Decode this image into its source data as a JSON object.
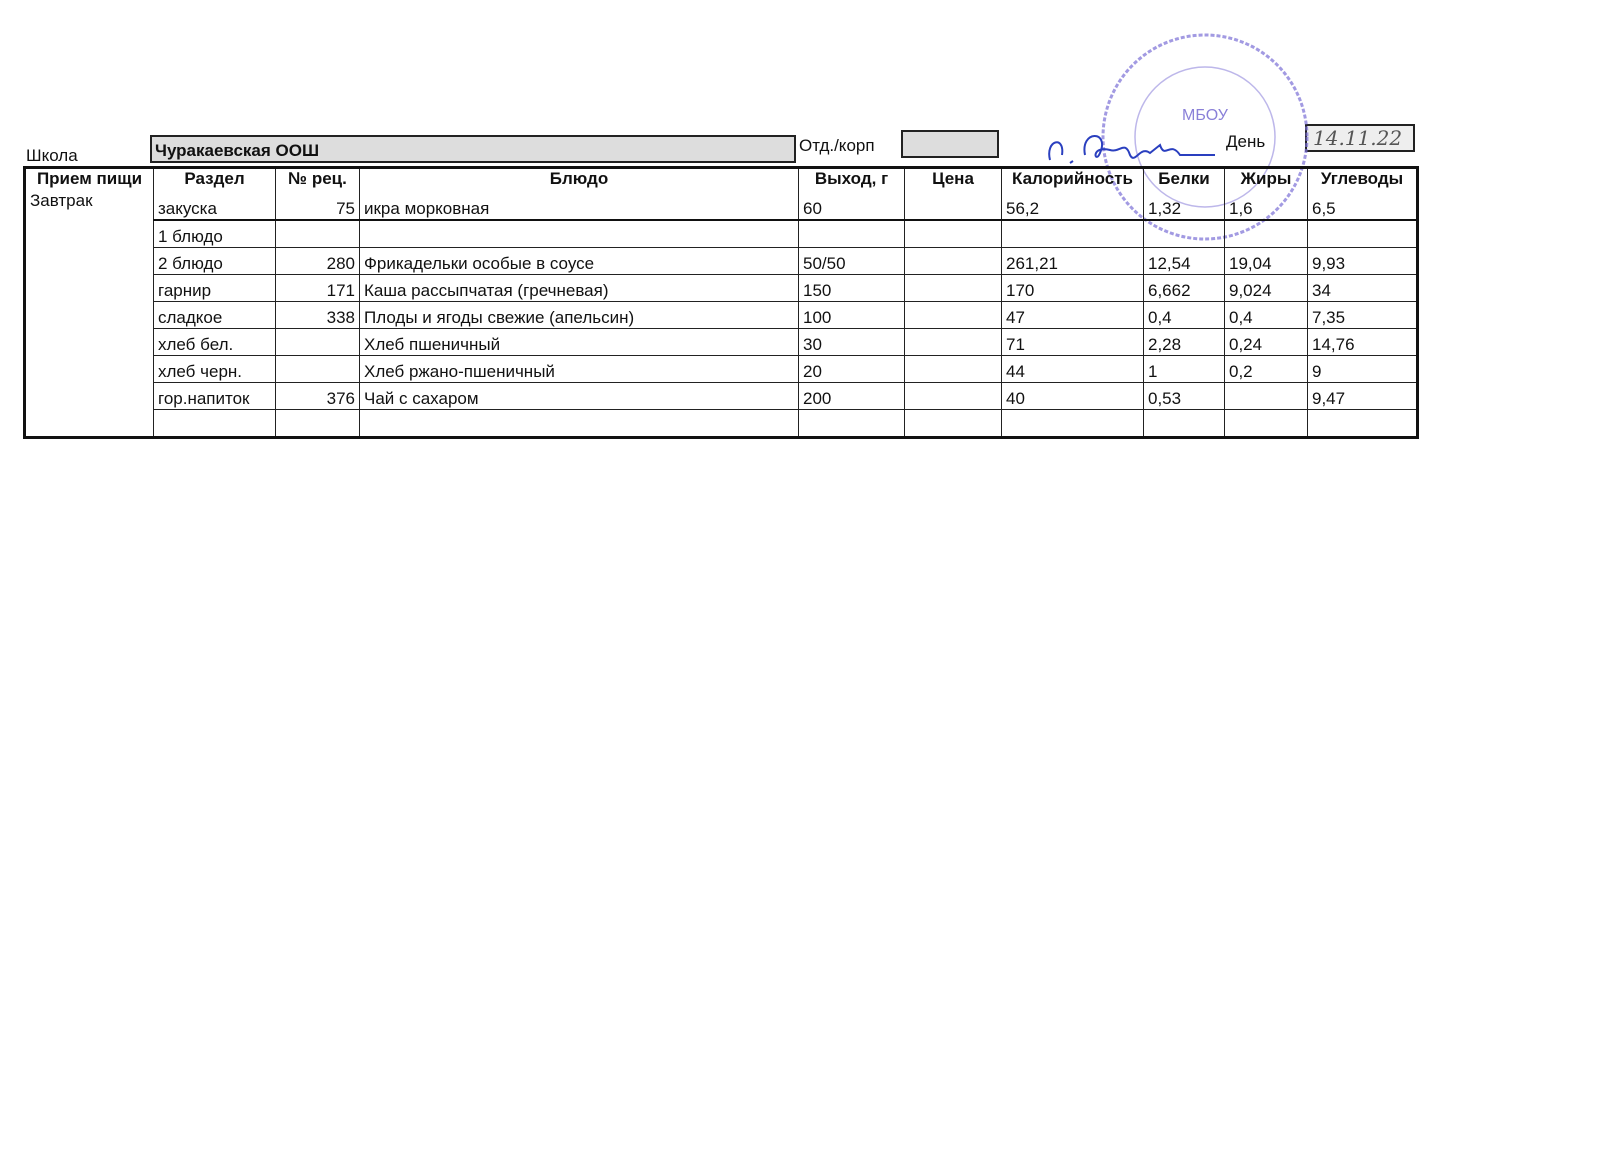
{
  "header": {
    "school_label": "Школа",
    "school_value": "Чуракаевская ООШ",
    "dept_label": "Отд./корп",
    "dept_value": "",
    "day_label": "День",
    "day_value": "14.11.22"
  },
  "stamp": {
    "text": "МБОУ",
    "color": "#6a5acd"
  },
  "signature": {
    "color": "#2a3fbf"
  },
  "table": {
    "columns": [
      "Прием пищи",
      "Раздел",
      "№ рец.",
      "Блюдо",
      "Выход, г",
      "Цена",
      "Калорийность",
      "Белки",
      "Жиры",
      "Углеводы"
    ],
    "meal": "Завтрак",
    "rows": [
      {
        "section": "закуска",
        "recipe": "75",
        "dish": "икра морковная",
        "yield": "60",
        "price": "",
        "kcal": "56,2",
        "protein": "1,32",
        "fat": "1,6",
        "carbs": "6,5"
      },
      {
        "section": "1 блюдо",
        "recipe": "",
        "dish": "",
        "yield": "",
        "price": "",
        "kcal": "",
        "protein": "",
        "fat": "",
        "carbs": ""
      },
      {
        "section": "2 блюдо",
        "recipe": "280",
        "dish": "Фрикадельки особые  в соусе",
        "yield": "50/50",
        "price": "",
        "kcal": "261,21",
        "protein": "12,54",
        "fat": "19,04",
        "carbs": "9,93"
      },
      {
        "section": "гарнир",
        "recipe": "171",
        "dish": "Каша рассыпчатая (гречневая)",
        "yield": "150",
        "price": "",
        "kcal": "170",
        "protein": "6,662",
        "fat": "9,024",
        "carbs": "34"
      },
      {
        "section": "сладкое",
        "recipe": "338",
        "dish": "Плоды и ягоды свежие (апельсин)",
        "yield": "100",
        "price": "",
        "kcal": "47",
        "protein": "0,4",
        "fat": "0,4",
        "carbs": "7,35"
      },
      {
        "section": "хлеб бел.",
        "recipe": "",
        "dish": "Хлеб пшеничный",
        "yield": "30",
        "price": "",
        "kcal": "71",
        "protein": "2,28",
        "fat": "0,24",
        "carbs": "14,76"
      },
      {
        "section": "хлеб черн.",
        "recipe": "",
        "dish": "Хлеб ржано-пшеничный",
        "yield": "20",
        "price": "",
        "kcal": "44",
        "protein": "1",
        "fat": "0,2",
        "carbs": "9"
      },
      {
        "section": "гор.напиток",
        "recipe": "376",
        "dish": "Чай с сахаром",
        "yield": "200",
        "price": "",
        "kcal": "40",
        "protein": "0,53",
        "fat": "",
        "carbs": "9,47"
      },
      {
        "section": "",
        "recipe": "",
        "dish": "",
        "yield": "",
        "price": "",
        "kcal": "",
        "protein": "",
        "fat": "",
        "carbs": ""
      }
    ]
  }
}
